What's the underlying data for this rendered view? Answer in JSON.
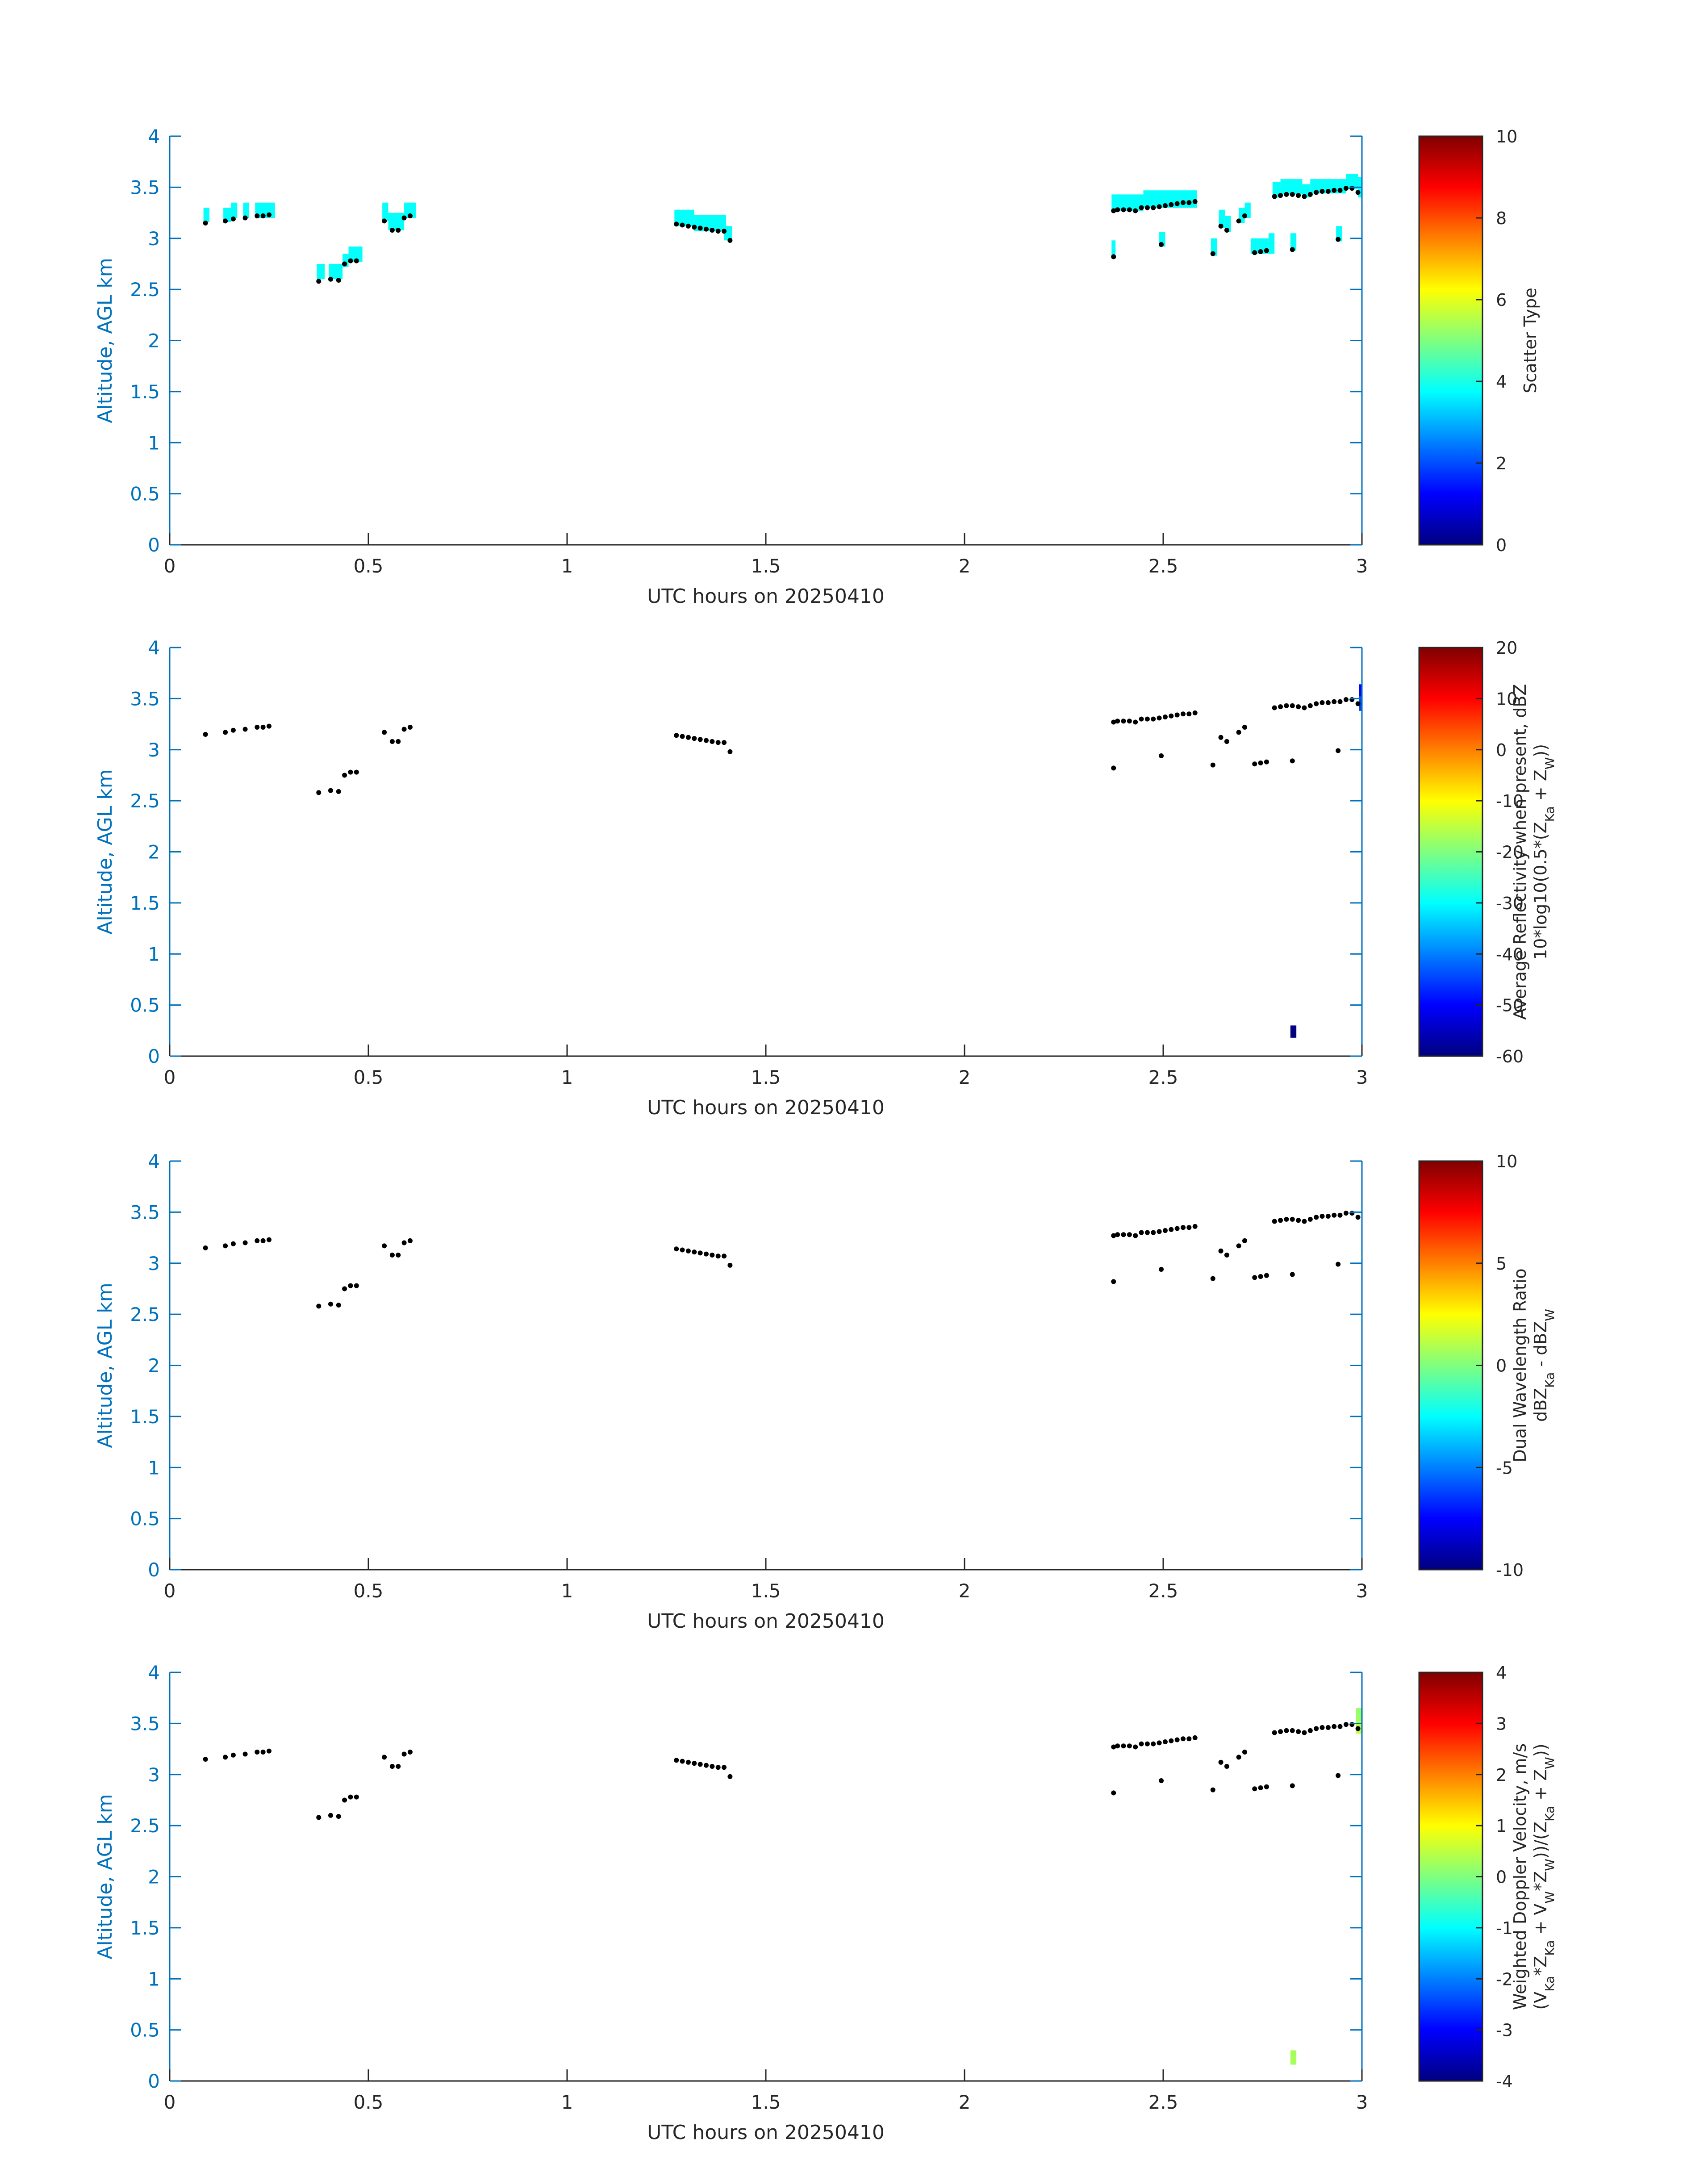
{
  "chart_data": [
    {
      "type": "heatmap",
      "panel": "scatter-type",
      "xlabel": "UTC hours on 20250410",
      "ylabel": "Altitude, AGL km",
      "xlim": [
        0,
        3
      ],
      "ylim": [
        0,
        4
      ],
      "xticks": [
        0,
        0.5,
        1,
        1.5,
        2,
        2.5,
        3
      ],
      "xtick_labels": [
        "0",
        "0.5",
        "1",
        "1.5",
        "2",
        "2.5",
        "3"
      ],
      "yticks": [
        0,
        0.5,
        1,
        1.5,
        2,
        2.5,
        3,
        3.5,
        4
      ],
      "ytick_labels": [
        "0",
        "0.5",
        "1",
        "1.5",
        "2",
        "2.5",
        "3",
        "3.5",
        "4"
      ],
      "grid": false,
      "colorbar": {
        "label_lines": [
          "Scatter Type"
        ],
        "clim": [
          0,
          10
        ],
        "ticks": [
          0,
          2,
          4,
          6,
          8,
          10
        ],
        "tick_labels": [
          "0",
          "2",
          "4",
          "6",
          "8",
          "10"
        ],
        "colormap": "jet"
      },
      "cells": [
        {
          "x0": 0.085,
          "x1": 0.1,
          "y0": 3.16,
          "y1": 3.3,
          "value": 3.8
        },
        {
          "x0": 0.135,
          "x1": 0.155,
          "y0": 3.16,
          "y1": 3.3,
          "value": 3.8
        },
        {
          "x0": 0.155,
          "x1": 0.17,
          "y0": 3.2,
          "y1": 3.35,
          "value": 3.8
        },
        {
          "x0": 0.185,
          "x1": 0.2,
          "y0": 3.2,
          "y1": 3.35,
          "value": 3.8
        },
        {
          "x0": 0.215,
          "x1": 0.265,
          "y0": 3.2,
          "y1": 3.35,
          "value": 3.8
        },
        {
          "x0": 0.37,
          "x1": 0.39,
          "y0": 2.6,
          "y1": 2.75,
          "value": 3.8
        },
        {
          "x0": 0.4,
          "x1": 0.435,
          "y0": 2.6,
          "y1": 2.75,
          "value": 3.8
        },
        {
          "x0": 0.435,
          "x1": 0.45,
          "y0": 2.72,
          "y1": 2.85,
          "value": 3.8
        },
        {
          "x0": 0.45,
          "x1": 0.485,
          "y0": 2.77,
          "y1": 2.92,
          "value": 3.8
        },
        {
          "x0": 0.535,
          "x1": 0.55,
          "y0": 3.17,
          "y1": 3.35,
          "value": 3.8
        },
        {
          "x0": 0.55,
          "x1": 0.59,
          "y0": 3.08,
          "y1": 3.25,
          "value": 3.8
        },
        {
          "x0": 0.59,
          "x1": 0.62,
          "y0": 3.2,
          "y1": 3.35,
          "value": 3.8
        },
        {
          "x0": 1.27,
          "x1": 1.32,
          "y0": 3.12,
          "y1": 3.28,
          "value": 3.8
        },
        {
          "x0": 1.32,
          "x1": 1.4,
          "y0": 3.07,
          "y1": 3.23,
          "value": 3.8
        },
        {
          "x0": 1.395,
          "x1": 1.415,
          "y0": 2.98,
          "y1": 3.12,
          "value": 3.8
        },
        {
          "x0": 2.37,
          "x1": 2.38,
          "y0": 2.8,
          "y1": 2.98,
          "value": 3.8
        },
        {
          "x0": 2.37,
          "x1": 2.45,
          "y0": 3.27,
          "y1": 3.43,
          "value": 3.8
        },
        {
          "x0": 2.45,
          "x1": 2.585,
          "y0": 3.3,
          "y1": 3.47,
          "value": 3.8
        },
        {
          "x0": 2.49,
          "x1": 2.505,
          "y0": 2.92,
          "y1": 3.06,
          "value": 3.8
        },
        {
          "x0": 2.62,
          "x1": 2.635,
          "y0": 2.83,
          "y1": 3.0,
          "value": 3.8
        },
        {
          "x0": 2.64,
          "x1": 2.655,
          "y0": 3.1,
          "y1": 3.28,
          "value": 3.8
        },
        {
          "x0": 2.655,
          "x1": 2.67,
          "y0": 3.06,
          "y1": 3.22,
          "value": 3.8
        },
        {
          "x0": 2.69,
          "x1": 2.705,
          "y0": 3.15,
          "y1": 3.3,
          "value": 3.8
        },
        {
          "x0": 2.705,
          "x1": 2.72,
          "y0": 3.2,
          "y1": 3.35,
          "value": 3.8
        },
        {
          "x0": 2.72,
          "x1": 2.765,
          "y0": 2.85,
          "y1": 3.0,
          "value": 3.8
        },
        {
          "x0": 2.765,
          "x1": 2.78,
          "y0": 2.85,
          "y1": 3.05,
          "value": 3.8
        },
        {
          "x0": 2.775,
          "x1": 2.795,
          "y0": 3.4,
          "y1": 3.55,
          "value": 3.8
        },
        {
          "x0": 2.795,
          "x1": 2.85,
          "y0": 3.43,
          "y1": 3.58,
          "value": 3.8
        },
        {
          "x0": 2.82,
          "x1": 2.835,
          "y0": 2.88,
          "y1": 3.05,
          "value": 3.8
        },
        {
          "x0": 2.85,
          "x1": 2.87,
          "y0": 3.4,
          "y1": 3.53,
          "value": 3.8
        },
        {
          "x0": 2.87,
          "x1": 2.96,
          "y0": 3.44,
          "y1": 3.58,
          "value": 3.8
        },
        {
          "x0": 2.935,
          "x1": 2.95,
          "y0": 2.97,
          "y1": 3.12,
          "value": 3.8
        },
        {
          "x0": 2.96,
          "x1": 2.99,
          "y0": 3.48,
          "y1": 3.63,
          "value": 3.8
        },
        {
          "x0": 2.99,
          "x1": 3.0,
          "y0": 3.4,
          "y1": 3.6,
          "value": 3.8
        }
      ]
    },
    {
      "type": "heatmap",
      "panel": "reflectivity",
      "xlabel": "UTC hours on 20250410",
      "ylabel": "Altitude, AGL km",
      "xlim": [
        0,
        3
      ],
      "ylim": [
        0,
        4
      ],
      "xticks": [
        0,
        0.5,
        1,
        1.5,
        2,
        2.5,
        3
      ],
      "xtick_labels": [
        "0",
        "0.5",
        "1",
        "1.5",
        "2",
        "2.5",
        "3"
      ],
      "yticks": [
        0,
        0.5,
        1,
        1.5,
        2,
        2.5,
        3,
        3.5,
        4
      ],
      "ytick_labels": [
        "0",
        "0.5",
        "1",
        "1.5",
        "2",
        "2.5",
        "3",
        "3.5",
        "4"
      ],
      "grid": false,
      "colorbar": {
        "label_lines": [
          "Average Reflectivity when present, dBZ",
          "10*log10(0.5*(Z_Ka + Z_W))"
        ],
        "clim": [
          -60,
          20
        ],
        "ticks": [
          -60,
          -50,
          -40,
          -30,
          -20,
          -10,
          0,
          10,
          20
        ],
        "tick_labels": [
          "-60",
          "-50",
          "-40",
          "-30",
          "-20",
          "-10",
          "0",
          "10",
          "20"
        ],
        "colormap": "jet"
      },
      "cells": [
        {
          "x0": 2.993,
          "x1": 3.0,
          "y0": 3.52,
          "y1": 3.64,
          "value": -50
        },
        {
          "x0": 2.993,
          "x1": 3.0,
          "y0": 3.38,
          "y1": 3.52,
          "value": -45
        },
        {
          "x0": 2.82,
          "x1": 2.835,
          "y0": 0.18,
          "y1": 0.3,
          "value": -60
        }
      ]
    },
    {
      "type": "heatmap",
      "panel": "dual-wavelength-ratio",
      "xlabel": "UTC hours on 20250410",
      "ylabel": "Altitude, AGL km",
      "xlim": [
        0,
        3
      ],
      "ylim": [
        0,
        4
      ],
      "xticks": [
        0,
        0.5,
        1,
        1.5,
        2,
        2.5,
        3
      ],
      "xtick_labels": [
        "0",
        "0.5",
        "1",
        "1.5",
        "2",
        "2.5",
        "3"
      ],
      "yticks": [
        0,
        0.5,
        1,
        1.5,
        2,
        2.5,
        3,
        3.5,
        4
      ],
      "ytick_labels": [
        "0",
        "0.5",
        "1",
        "1.5",
        "2",
        "2.5",
        "3",
        "3.5",
        "4"
      ],
      "grid": false,
      "colorbar": {
        "label_lines": [
          "Dual Wavelength Ratio",
          "dBZ_Ka - dBZ_W"
        ],
        "clim": [
          -10,
          10
        ],
        "ticks": [
          -10,
          -5,
          0,
          5,
          10
        ],
        "tick_labels": [
          "-10",
          "-5",
          "0",
          "5",
          "10"
        ],
        "colormap": "jet"
      },
      "cells": []
    },
    {
      "type": "heatmap",
      "panel": "doppler-velocity",
      "xlabel": "UTC hours on 20250410",
      "ylabel": "Altitude, AGL km",
      "xlim": [
        0,
        3
      ],
      "ylim": [
        0,
        4
      ],
      "xticks": [
        0,
        0.5,
        1,
        1.5,
        2,
        2.5,
        3
      ],
      "xtick_labels": [
        "0",
        "0.5",
        "1",
        "1.5",
        "2",
        "2.5",
        "3"
      ],
      "yticks": [
        0,
        0.5,
        1,
        1.5,
        2,
        2.5,
        3,
        3.5,
        4
      ],
      "ytick_labels": [
        "0",
        "0.5",
        "1",
        "1.5",
        "2",
        "2.5",
        "3",
        "3.5",
        "4"
      ],
      "grid": false,
      "colorbar": {
        "label_lines": [
          "Weighted Doppler Velocity, m/s",
          "(V_Ka*Z_Ka + V_W*Z_W))/(Z_Ka + Z_W))"
        ],
        "clim": [
          -4,
          4
        ],
        "ticks": [
          -4,
          -3,
          -2,
          -1,
          0,
          1,
          2,
          3,
          4
        ],
        "tick_labels": [
          "-4",
          "-3",
          "-2",
          "-1",
          "0",
          "1",
          "2",
          "3",
          "4"
        ],
        "colormap": "jet"
      },
      "cells": [
        {
          "x0": 2.985,
          "x1": 3.0,
          "y0": 3.52,
          "y1": 3.65,
          "value": 0.2
        },
        {
          "x0": 2.985,
          "x1": 3.0,
          "y0": 3.4,
          "y1": 3.52,
          "value": 0.5
        },
        {
          "x0": 2.82,
          "x1": 2.835,
          "y0": 0.16,
          "y1": 0.3,
          "value": 0.3
        }
      ]
    }
  ],
  "cloud_base_markers": {
    "series_type": "scatter",
    "color": "#000000",
    "x": [
      0.09,
      0.14,
      0.16,
      0.19,
      0.22,
      0.235,
      0.25,
      0.375,
      0.405,
      0.425,
      0.44,
      0.455,
      0.47,
      0.54,
      0.56,
      0.575,
      0.59,
      0.605,
      1.275,
      1.29,
      1.305,
      1.32,
      1.335,
      1.35,
      1.365,
      1.38,
      1.395,
      1.41,
      2.375,
      2.385,
      2.4,
      2.415,
      2.43,
      2.445,
      2.46,
      2.475,
      2.49,
      2.505,
      2.52,
      2.535,
      2.55,
      2.565,
      2.58,
      2.375,
      2.495,
      2.625,
      2.645,
      2.66,
      2.69,
      2.705,
      2.73,
      2.745,
      2.76,
      2.78,
      2.795,
      2.81,
      2.825,
      2.84,
      2.855,
      2.87,
      2.885,
      2.9,
      2.915,
      2.93,
      2.945,
      2.96,
      2.975,
      2.99,
      2.825,
      2.94
    ],
    "y": [
      3.15,
      3.17,
      3.19,
      3.2,
      3.22,
      3.22,
      3.23,
      2.58,
      2.6,
      2.59,
      2.75,
      2.78,
      2.78,
      3.17,
      3.08,
      3.08,
      3.2,
      3.22,
      3.14,
      3.13,
      3.12,
      3.11,
      3.1,
      3.09,
      3.08,
      3.07,
      3.07,
      2.98,
      3.27,
      3.28,
      3.28,
      3.28,
      3.27,
      3.3,
      3.3,
      3.3,
      3.31,
      3.32,
      3.33,
      3.34,
      3.35,
      3.35,
      3.36,
      2.82,
      2.94,
      2.85,
      3.12,
      3.08,
      3.17,
      3.22,
      2.86,
      2.87,
      2.88,
      3.41,
      3.42,
      3.43,
      3.43,
      3.42,
      3.41,
      3.43,
      3.45,
      3.46,
      3.46,
      3.47,
      3.47,
      3.49,
      3.49,
      3.45,
      2.89,
      2.99
    ]
  }
}
